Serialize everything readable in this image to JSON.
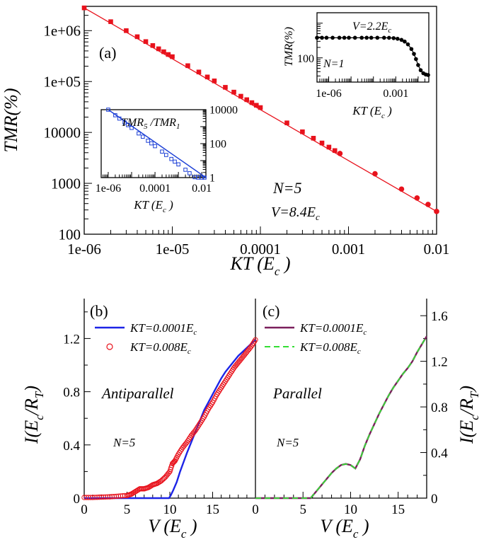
{
  "colors": {
    "series_main": "#e8121c",
    "inset_tmr_ratio": "#1c3fd6",
    "kt_low_ap": "#1c24e6",
    "kt_high_ap": "#e8121c",
    "kt_low_p": "#7a1f5c",
    "kt_high_p": "#33dd33"
  },
  "chart_data": [
    {
      "id": "a",
      "type": "scatter",
      "panel_label": "(a)",
      "xlabel": "KT (E",
      "xlabel_sub": "c",
      "xlabel_close": " )",
      "ylabel": "TMR(%)",
      "xscale": "log",
      "yscale": "log",
      "xlim": [
        1e-06,
        0.01
      ],
      "ylim": [
        100,
        3000000
      ],
      "xticks": [
        "1e-06",
        "1e-05",
        "0.0001",
        "0.001",
        "0.01"
      ],
      "yticks": [
        "100",
        "1000",
        "10000",
        "1e+05",
        "1e+06"
      ],
      "annotations": {
        "n": "N=5",
        "v": "V=8.4E",
        "v_sub": "c"
      },
      "series": [
        {
          "color": "#e8121c",
          "line": [
            [
              1e-06,
              2800000
            ],
            [
              0.01,
              280
            ]
          ],
          "points": [
            [
              1e-06,
              2800000
            ],
            [
              2e-06,
              1500000
            ],
            [
              3e-06,
              1000000
            ],
            [
              4e-06,
              760000
            ],
            [
              5e-06,
              610000
            ],
            [
              6e-06,
              510000
            ],
            [
              7e-06,
              440000
            ],
            [
              8e-06,
              385000
            ],
            [
              9e-06,
              340000
            ],
            [
              1e-05,
              308000
            ],
            [
              1.5e-05,
              205000
            ],
            [
              2e-05,
              154000
            ],
            [
              2.5e-05,
              123000
            ],
            [
              3e-05,
              103000
            ],
            [
              4e-05,
              77000
            ],
            [
              5e-05,
              62000
            ],
            [
              6e-05,
              51500
            ],
            [
              7e-05,
              44000
            ],
            [
              8e-05,
              38500
            ],
            [
              9e-05,
              34200
            ],
            [
              0.0001,
              30800
            ],
            [
              0.0002,
              15400
            ],
            [
              0.0003,
              10300
            ],
            [
              0.0004,
              7700
            ],
            [
              0.0005,
              6200
            ],
            [
              0.0006,
              5150
            ],
            [
              0.0007,
              4400
            ],
            [
              0.0008,
              3850
            ],
            [
              0.002,
              1540
            ],
            [
              0.004,
              770
            ],
            [
              0.006,
              515
            ],
            [
              0.008,
              385
            ],
            [
              0.01,
              280
            ]
          ]
        }
      ]
    },
    {
      "id": "a-inset-ratio",
      "type": "line",
      "title": "TMR",
      "title_sub": "5",
      "title_mid": " /TMR",
      "title_sub2": "1",
      "xlabel": "KT (E",
      "xlabel_sub": "c",
      "xlabel_close": " )",
      "xscale": "log",
      "yscale": "log",
      "xlim": [
        5e-07,
        0.015
      ],
      "ylim": [
        1,
        10000
      ],
      "xticks": [
        "1e-06",
        "0.0001",
        "0.01"
      ],
      "yticks": [
        "1",
        "100",
        "10000"
      ],
      "series": [
        {
          "color": "#1c3fd6",
          "line": [
            [
              1e-06,
              10000
            ],
            [
              0.015,
              1
            ]
          ],
          "points": [
            [
              1e-06,
              10000
            ],
            [
              2e-06,
              4700
            ],
            [
              3e-06,
              3000
            ],
            [
              5e-06,
              1750
            ],
            [
              7e-06,
              1230
            ],
            [
              1e-05,
              845
            ],
            [
              2e-05,
              400
            ],
            [
              3e-05,
              255
            ],
            [
              5e-05,
              148
            ],
            [
              7e-05,
              104
            ],
            [
              0.0001,
              71
            ],
            [
              0.0002,
              34
            ],
            [
              0.0003,
              21.5
            ],
            [
              0.0005,
              12.5
            ],
            [
              0.0007,
              8.7
            ],
            [
              0.001,
              6
            ],
            [
              0.002,
              2.9
            ],
            [
              0.003,
              1.8
            ],
            [
              0.005,
              1.06
            ],
            [
              0.007,
              1.0
            ],
            [
              0.01,
              1.0
            ],
            [
              0.013,
              1.0
            ]
          ]
        }
      ]
    },
    {
      "id": "a-inset-n1",
      "type": "scatter",
      "xlabel": "KT (E",
      "xlabel_sub": "c",
      "xlabel_close": " )",
      "ylabel": "TMR(%)",
      "xscale": "log",
      "yscale": "log",
      "xlim": [
        3e-07,
        0.03
      ],
      "ylim": [
        20,
        2000
      ],
      "xticks": [
        "1e-06",
        "0.001"
      ],
      "yticks": [
        "100"
      ],
      "annotations": {
        "n": "N=1",
        "v": "V=2.2E",
        "v_sub": "c"
      },
      "series": [
        {
          "color": "#000000",
          "points": [
            [
              3e-07,
              380
            ],
            [
              5e-07,
              380
            ],
            [
              8e-07,
              380
            ],
            [
              1.5e-06,
              380
            ],
            [
              3e-06,
              380
            ],
            [
              5e-06,
              380
            ],
            [
              8e-06,
              380
            ],
            [
              1.5e-05,
              380
            ],
            [
              3e-05,
              380
            ],
            [
              5e-05,
              380
            ],
            [
              8e-05,
              380
            ],
            [
              0.00015,
              380
            ],
            [
              0.0003,
              380
            ],
            [
              0.0005,
              378
            ],
            [
              0.0008,
              370
            ],
            [
              0.0012,
              355
            ],
            [
              0.0018,
              330
            ],
            [
              0.0025,
              295
            ],
            [
              0.0035,
              245
            ],
            [
              0.005,
              180
            ],
            [
              0.0065,
              130
            ],
            [
              0.008,
              92
            ],
            [
              0.01,
              62
            ],
            [
              0.013,
              44
            ],
            [
              0.017,
              36
            ],
            [
              0.022,
              33
            ],
            [
              0.028,
              32
            ]
          ]
        }
      ]
    },
    {
      "id": "b",
      "type": "line",
      "panel_label": "(b)",
      "xlabel": "V (E",
      "xlabel_sub": "c",
      "xlabel_close": " )",
      "ylabel": "I(E",
      "ylabel_sub": "c",
      "ylabel_mid": "/R",
      "ylabel_sub2": "T",
      "ylabel_close": ")",
      "xlim": [
        0,
        20
      ],
      "ylim": [
        0,
        1.5
      ],
      "xticks": [
        "0",
        "5",
        "10",
        "15",
        "0"
      ],
      "yticks": [
        "0",
        "0.4",
        "0.8",
        "1.2"
      ],
      "annotations": {
        "state": "Antiparallel",
        "n": "N=5"
      },
      "series": [
        {
          "name": "KT=0.0001E",
          "name_sub": "c",
          "color": "#1c24e6",
          "x": [
            0,
            9.9,
            10.1,
            10.4,
            10.8,
            11.2,
            11.6,
            12,
            12.5,
            13,
            13.5,
            14,
            14.5,
            15,
            15.5,
            16,
            16.5,
            17,
            17.5,
            18,
            18.5,
            19,
            19.5,
            20
          ],
          "y": [
            0,
            0,
            0.02,
            0.06,
            0.12,
            0.2,
            0.27,
            0.34,
            0.42,
            0.5,
            0.58,
            0.66,
            0.72,
            0.78,
            0.84,
            0.9,
            0.95,
            0.99,
            1.03,
            1.07,
            1.1,
            1.13,
            1.16,
            1.19
          ]
        },
        {
          "name": "KT=0.008E",
          "name_sub": "c",
          "color": "#e8121c",
          "x": [
            0,
            1,
            2,
            3,
            4,
            5,
            5.5,
            6,
            6.5,
            7,
            7.5,
            8,
            8.5,
            9,
            9.5,
            10,
            10.3,
            10.6,
            11,
            11.5,
            12,
            12.5,
            13,
            13.5,
            14,
            14.5,
            15,
            15.5,
            16,
            16.5,
            17,
            17.5,
            18,
            18.5,
            19,
            19.5,
            20
          ],
          "y": [
            0.005,
            0.005,
            0.008,
            0.01,
            0.015,
            0.02,
            0.03,
            0.05,
            0.07,
            0.07,
            0.08,
            0.1,
            0.11,
            0.13,
            0.16,
            0.2,
            0.26,
            0.28,
            0.33,
            0.38,
            0.42,
            0.47,
            0.51,
            0.56,
            0.61,
            0.67,
            0.72,
            0.78,
            0.83,
            0.88,
            0.93,
            0.98,
            1.02,
            1.06,
            1.1,
            1.14,
            1.19
          ]
        }
      ]
    },
    {
      "id": "c",
      "type": "line",
      "panel_label": "(c)",
      "xlabel": "V (E",
      "xlabel_sub": "c",
      "xlabel_close": " )",
      "ylabel": "I(E",
      "ylabel_sub": "c",
      "ylabel_mid": "/R",
      "ylabel_sub2": "T",
      "ylabel_close": ")",
      "xlim": [
        0,
        18
      ],
      "ylim": [
        0,
        1.75
      ],
      "xticks": [
        "0",
        "5",
        "10",
        "15"
      ],
      "yticks": [
        "0",
        "0.4",
        "0.8",
        "1.2",
        "1.6"
      ],
      "annotations": {
        "state": "Parallel",
        "n": "N=5"
      },
      "series": [
        {
          "name": "KT=0.0001E",
          "name_sub": "c",
          "color": "#7a1f5c",
          "x": [
            0,
            5.8,
            6.5,
            7,
            7.5,
            8,
            8.5,
            9,
            9.5,
            10,
            10.5,
            11,
            11.5,
            12,
            12.5,
            13,
            13.5,
            14,
            14.5,
            15,
            15.5,
            16,
            16.5,
            17,
            17.5,
            18
          ],
          "y": [
            0,
            0,
            0.07,
            0.12,
            0.17,
            0.22,
            0.26,
            0.29,
            0.3,
            0.29,
            0.26,
            0.34,
            0.46,
            0.56,
            0.65,
            0.74,
            0.82,
            0.9,
            0.97,
            1.03,
            1.09,
            1.14,
            1.2,
            1.28,
            1.35,
            1.42
          ]
        },
        {
          "name": "KT=0.008E",
          "name_sub": "c",
          "color": "#33dd33",
          "dashed": true,
          "x": [
            0,
            5.8,
            6.5,
            7,
            7.5,
            8,
            8.5,
            9,
            9.5,
            10,
            10.5,
            11,
            11.5,
            12,
            12.5,
            13,
            13.5,
            14,
            14.5,
            15,
            15.5,
            16,
            16.5,
            17,
            17.5,
            18
          ],
          "y": [
            0,
            0,
            0.07,
            0.12,
            0.17,
            0.22,
            0.26,
            0.29,
            0.3,
            0.29,
            0.26,
            0.34,
            0.46,
            0.56,
            0.65,
            0.74,
            0.82,
            0.9,
            0.97,
            1.03,
            1.09,
            1.14,
            1.2,
            1.28,
            1.35,
            1.42
          ]
        }
      ]
    }
  ]
}
